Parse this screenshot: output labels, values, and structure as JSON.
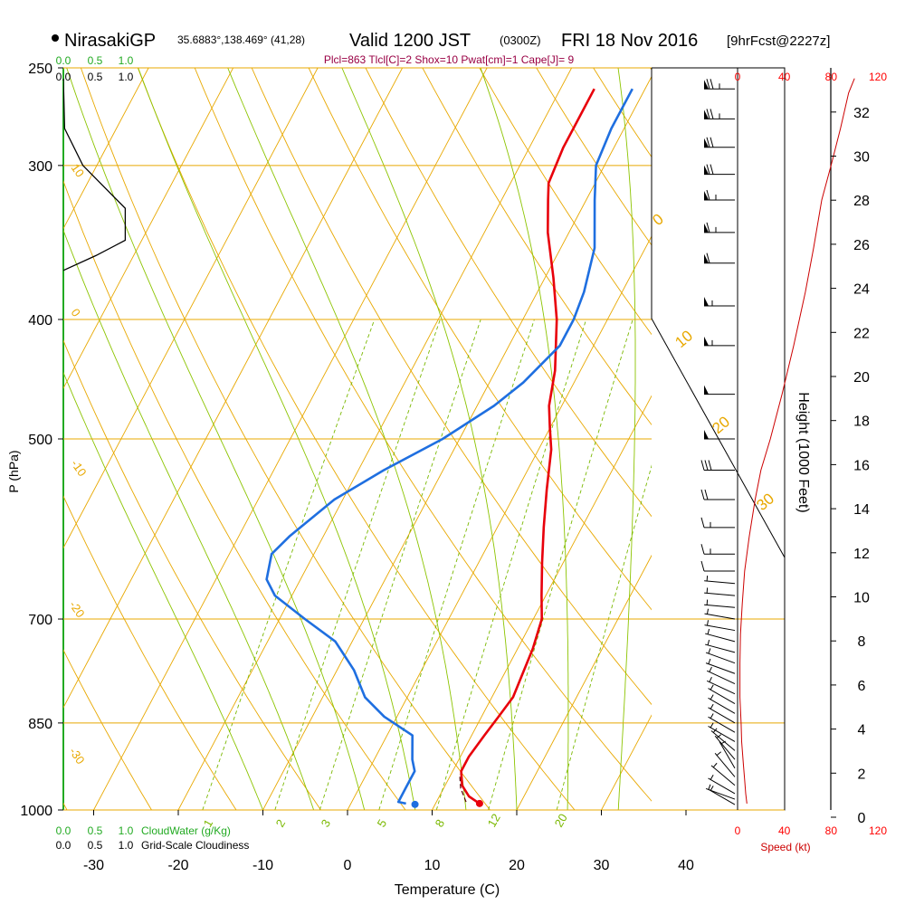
{
  "header": {
    "station_name": "NirasakiGP",
    "station_coords": "35.6883°,138.469° (41,28)",
    "valid_main": "Valid 1200 JST",
    "valid_utc": "(0300Z)",
    "valid_date": "FRI 18 Nov 2016",
    "forecast": "[9hrFcst@2227z]",
    "indices": "Plcl=863 Tlcl[C]=2 Shox=10 Pwat[cm]=1 Cape[J]= 9"
  },
  "labels": {
    "p_axis": "P (hPa)",
    "t_axis": "Temperature (C)",
    "height_axis": "Height (1000 Feet)",
    "speed_axis": "Speed (kt)",
    "cloudwater": "CloudWater (g/Kg)",
    "cloudiness": "Grid-Scale Cloudiness"
  },
  "colors": {
    "temperature": "#e8000b",
    "dewpoint": "#1f6fe0",
    "isotherm": "#e8a800",
    "dry_adiabat": "#e8a800",
    "moist_adiabat": "#8cc400",
    "mixing_ratio": "#7ab800",
    "cloudwater": "#22aa22",
    "wind_speed": "#cc0000",
    "header_indices": "#990044"
  },
  "chart_data": {
    "type": "line",
    "title": "NirasakiGP Valid 1200 JST (0300Z) FRI 18 Nov 2016",
    "xlabel": "Temperature (C)",
    "ylabel": "P (hPa)",
    "log_scale_y": true,
    "x_ticks": [
      -30,
      -20,
      -10,
      0,
      10,
      20,
      30,
      40
    ],
    "pressure_ticks": [
      1000,
      850,
      700,
      500,
      400,
      300,
      250
    ],
    "height_ticks": [
      0,
      2,
      4,
      6,
      8,
      10,
      12,
      14,
      16,
      18,
      20,
      22,
      24,
      26,
      28,
      30,
      32
    ],
    "speed_ticks": [
      0,
      40,
      80,
      120
    ],
    "cloudwater_ticks": [
      "0.0",
      "0.5",
      "1.0"
    ],
    "cloudiness_ticks": [
      "0.0",
      "0.5",
      "1.0"
    ],
    "isotherm_labels": [
      "10",
      "0",
      "-10",
      "-20",
      "-30"
    ],
    "adiabat_labels": [
      "0",
      "10",
      "20",
      "30"
    ],
    "mixing_ratio_labels": [
      "1",
      "2",
      "3",
      "5",
      "8",
      "12",
      "20"
    ],
    "series": [
      {
        "name": "temperature",
        "points": [
          [
            15.2,
            988
          ],
          [
            13.5,
            975
          ],
          [
            12,
            955
          ],
          [
            11,
            930
          ],
          [
            11,
            905
          ],
          [
            11.5,
            870
          ],
          [
            12,
            840
          ],
          [
            12.5,
            810
          ],
          [
            12.2,
            780
          ],
          [
            11.8,
            740
          ],
          [
            11,
            700
          ],
          [
            9.5,
            670
          ],
          [
            7.5,
            630
          ],
          [
            5.5,
            590
          ],
          [
            3.5,
            550
          ],
          [
            1.5,
            510
          ],
          [
            0,
            490
          ],
          [
            -1.5,
            470
          ],
          [
            -3,
            440
          ],
          [
            -6,
            400
          ],
          [
            -9,
            370
          ],
          [
            -12.5,
            340
          ],
          [
            -14.5,
            320
          ],
          [
            -15.5,
            310
          ],
          [
            -16,
            290
          ],
          [
            -16,
            272
          ],
          [
            -16,
            260
          ]
        ]
      },
      {
        "name": "dewpoint",
        "points": [
          [
            6.5,
            988
          ],
          [
            5.5,
            985
          ],
          [
            5.5,
            960
          ],
          [
            5.5,
            930
          ],
          [
            4.5,
            910
          ],
          [
            3,
            870
          ],
          [
            -1.5,
            840
          ],
          [
            -5,
            810
          ],
          [
            -8,
            770
          ],
          [
            -12,
            730
          ],
          [
            -17,
            700
          ],
          [
            -22,
            670
          ],
          [
            -24,
            650
          ],
          [
            -25,
            620
          ],
          [
            -24,
            600
          ],
          [
            -21,
            560
          ],
          [
            -17,
            530
          ],
          [
            -12,
            500
          ],
          [
            -8,
            470
          ],
          [
            -6,
            450
          ],
          [
            -4,
            420
          ],
          [
            -4,
            400
          ],
          [
            -4.5,
            380
          ],
          [
            -6,
            350
          ],
          [
            -9,
            320
          ],
          [
            -11,
            300
          ],
          [
            -11.5,
            280
          ],
          [
            -11.5,
            260
          ]
        ]
      },
      {
        "name": "parcel",
        "points": [
          [
            13.5,
            985
          ],
          [
            12,
            960
          ],
          [
            11,
            935
          ]
        ]
      }
    ],
    "cloudiness_profile": [
      [
        0.0,
        255
      ],
      [
        0.02,
        280
      ],
      [
        0.3,
        300
      ],
      [
        0.95,
        325
      ],
      [
        0.95,
        345
      ],
      [
        0.5,
        355
      ],
      [
        0.0,
        365
      ]
    ],
    "wind_speed_profile": [
      [
        8,
        988
      ],
      [
        7,
        970
      ],
      [
        6,
        945
      ],
      [
        5,
        920
      ],
      [
        3.5,
        880
      ],
      [
        3,
        850
      ],
      [
        2,
        810
      ],
      [
        2,
        760
      ],
      [
        2.5,
        720
      ],
      [
        4,
        680
      ],
      [
        6,
        640
      ],
      [
        10,
        600
      ],
      [
        15,
        560
      ],
      [
        20,
        530
      ],
      [
        28,
        500
      ],
      [
        38,
        460
      ],
      [
        48,
        420
      ],
      [
        58,
        380
      ],
      [
        65,
        350
      ],
      [
        72,
        320
      ],
      [
        80,
        300
      ],
      [
        88,
        280
      ],
      [
        95,
        262
      ],
      [
        100,
        255
      ]
    ],
    "wind_barbs": [
      {
        "p": 990,
        "dir": 300,
        "spd": 5
      },
      {
        "p": 980,
        "dir": 290,
        "spd": 5
      },
      {
        "p": 970,
        "dir": 300,
        "spd": 5
      },
      {
        "p": 955,
        "dir": 310,
        "spd": 5
      },
      {
        "p": 940,
        "dir": 320,
        "spd": 5
      },
      {
        "p": 925,
        "dir": 330,
        "spd": 5
      },
      {
        "p": 910,
        "dir": 320,
        "spd": 5
      },
      {
        "p": 895,
        "dir": 310,
        "spd": 5
      },
      {
        "p": 880,
        "dir": 300,
        "spd": 5
      },
      {
        "p": 865,
        "dir": 300,
        "spd": 5
      },
      {
        "p": 850,
        "dir": 300,
        "spd": 5
      },
      {
        "p": 835,
        "dir": 300,
        "spd": 5
      },
      {
        "p": 820,
        "dir": 300,
        "spd": 5
      },
      {
        "p": 805,
        "dir": 295,
        "spd": 5
      },
      {
        "p": 790,
        "dir": 295,
        "spd": 5
      },
      {
        "p": 775,
        "dir": 290,
        "spd": 5
      },
      {
        "p": 760,
        "dir": 290,
        "spd": 5
      },
      {
        "p": 745,
        "dir": 285,
        "spd": 5
      },
      {
        "p": 730,
        "dir": 285,
        "spd": 5
      },
      {
        "p": 715,
        "dir": 280,
        "spd": 5
      },
      {
        "p": 700,
        "dir": 280,
        "spd": 5
      },
      {
        "p": 685,
        "dir": 275,
        "spd": 5
      },
      {
        "p": 670,
        "dir": 275,
        "spd": 5
      },
      {
        "p": 655,
        "dir": 275,
        "spd": 5
      },
      {
        "p": 640,
        "dir": 270,
        "spd": 10
      },
      {
        "p": 620,
        "dir": 270,
        "spd": 15
      },
      {
        "p": 590,
        "dir": 270,
        "spd": 15
      },
      {
        "p": 560,
        "dir": 270,
        "spd": 20
      },
      {
        "p": 530,
        "dir": 270,
        "spd": 30
      },
      {
        "p": 500,
        "dir": 270,
        "spd": 50
      },
      {
        "p": 460,
        "dir": 270,
        "spd": 50
      },
      {
        "p": 420,
        "dir": 270,
        "spd": 55
      },
      {
        "p": 390,
        "dir": 270,
        "spd": 55
      },
      {
        "p": 360,
        "dir": 270,
        "spd": 60
      },
      {
        "p": 340,
        "dir": 270,
        "spd": 65
      },
      {
        "p": 320,
        "dir": 270,
        "spd": 65
      },
      {
        "p": 305,
        "dir": 270,
        "spd": 70
      },
      {
        "p": 290,
        "dir": 270,
        "spd": 70
      },
      {
        "p": 275,
        "dir": 270,
        "spd": 75
      },
      {
        "p": 260,
        "dir": 270,
        "spd": 75
      }
    ]
  }
}
